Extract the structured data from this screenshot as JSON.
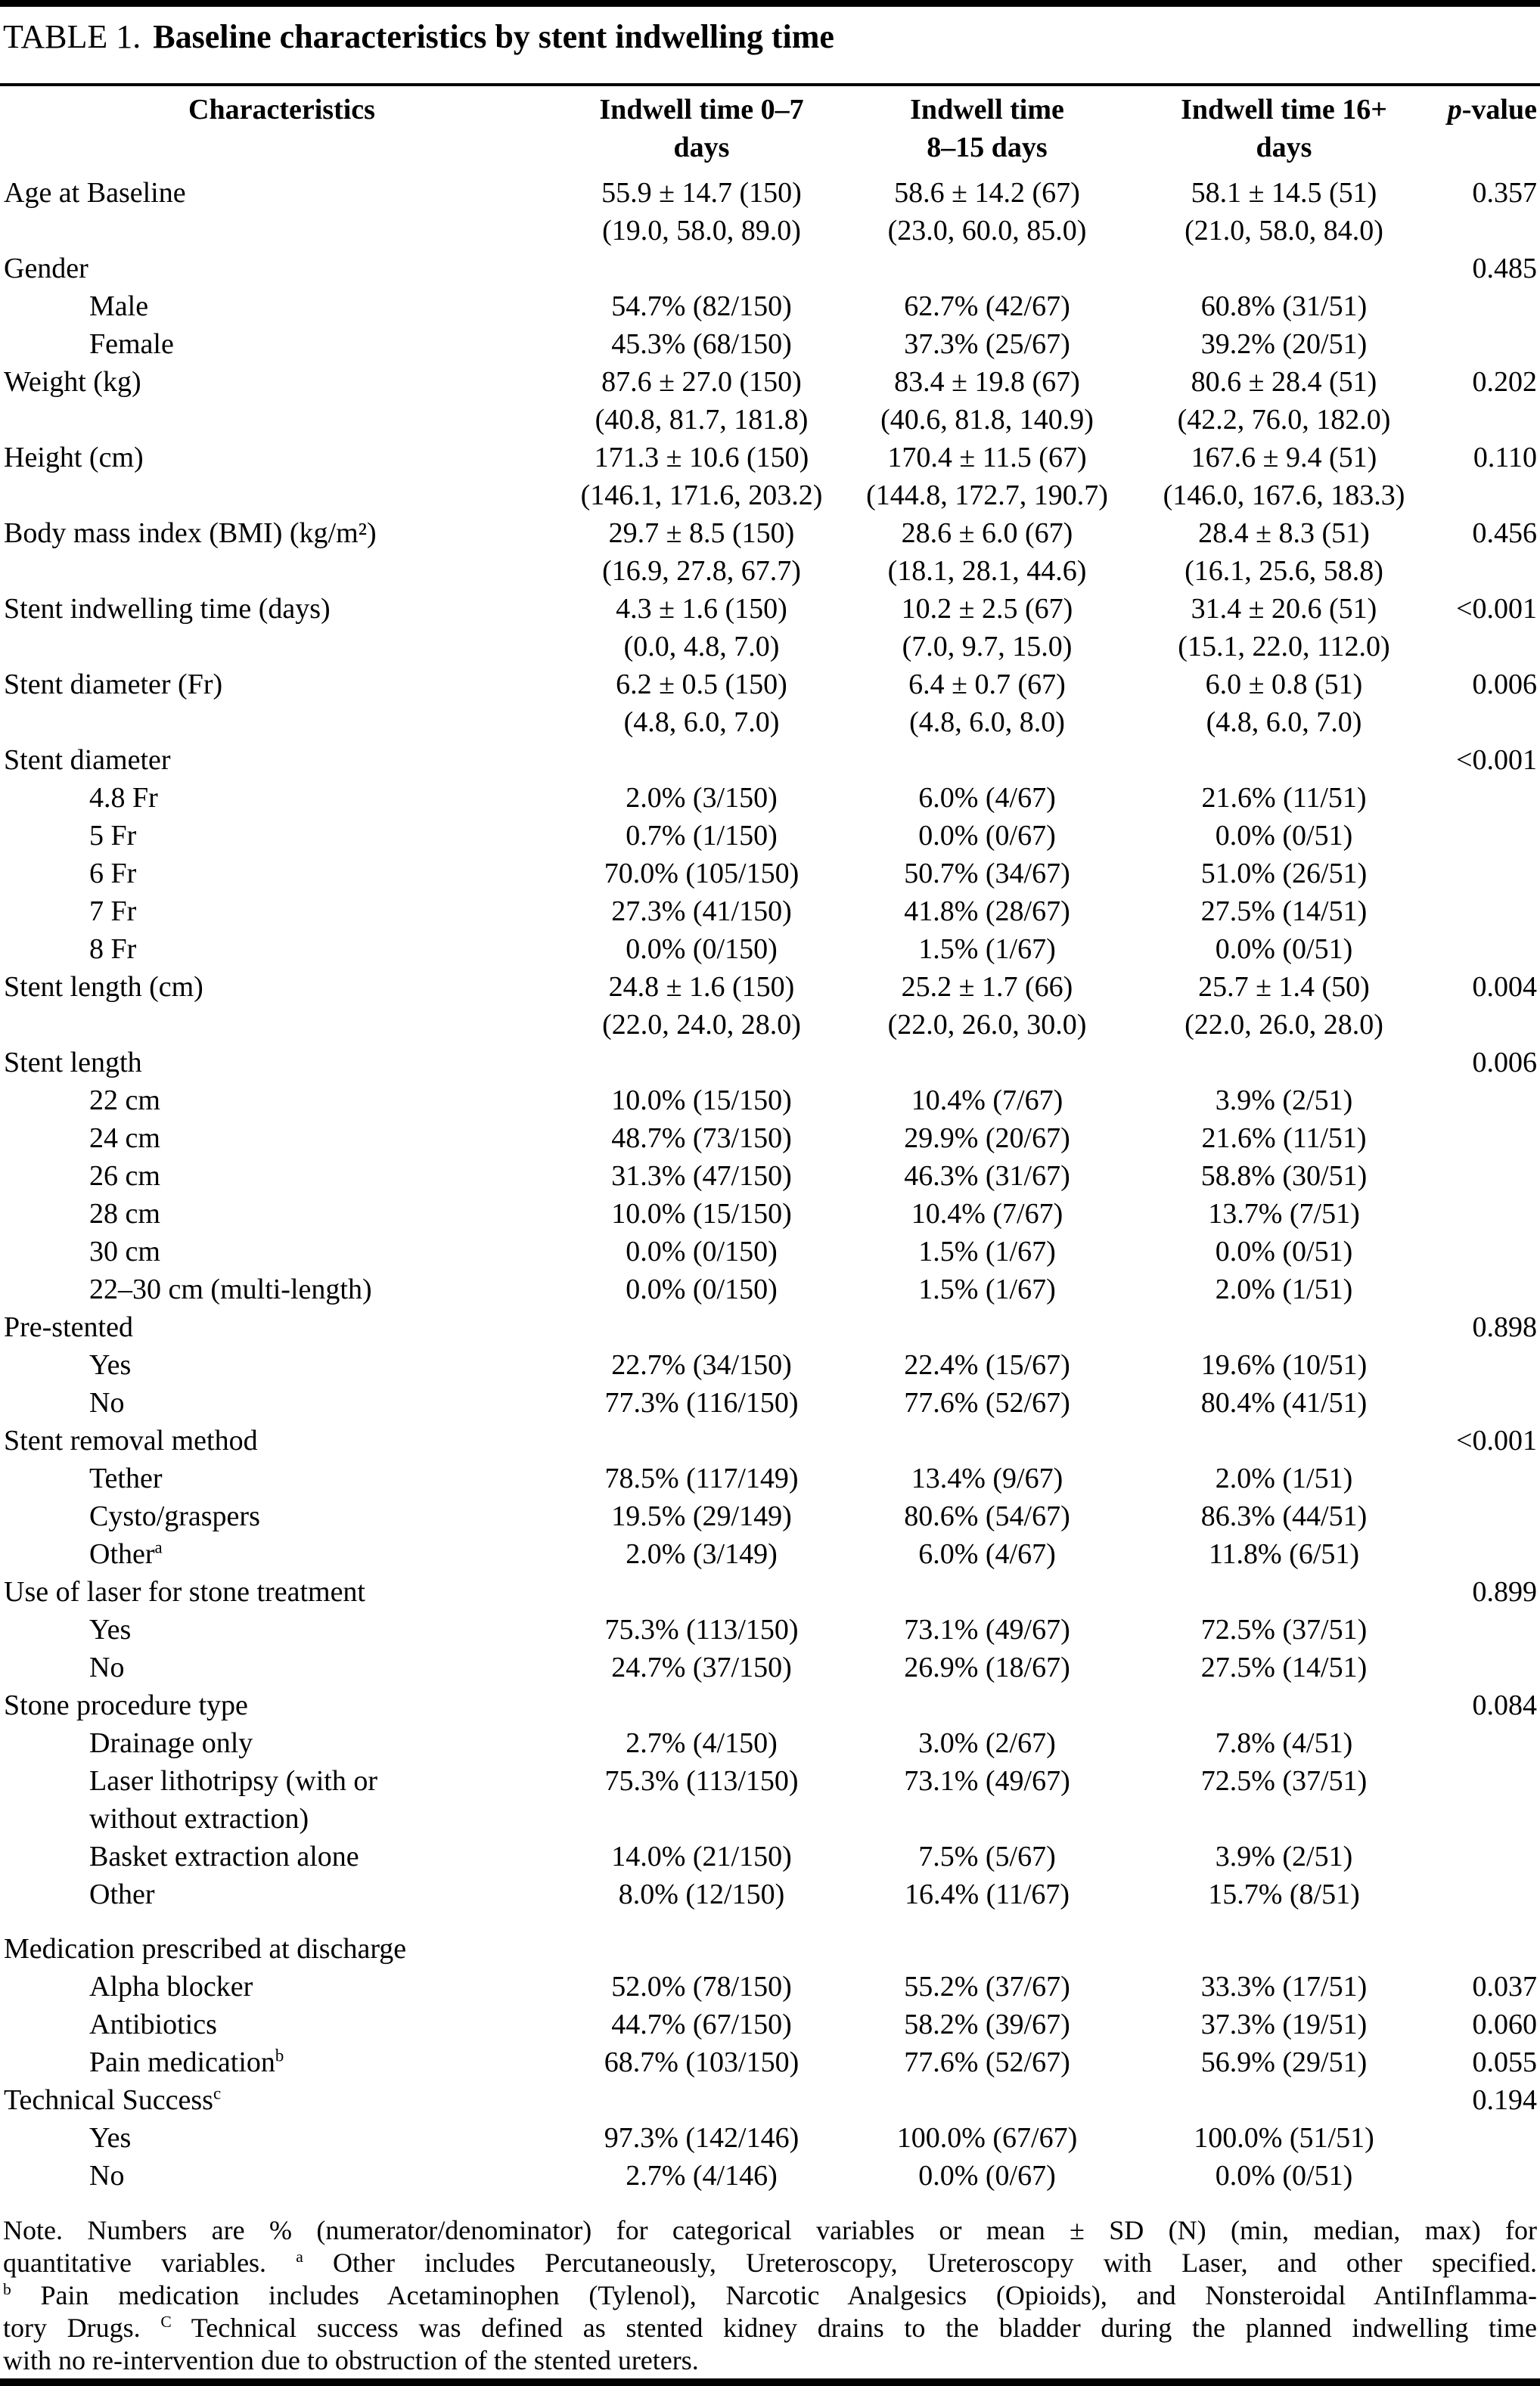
{
  "title": {
    "prefix": "TABLE 1.",
    "text": "Baseline characteristics by stent indwelling time"
  },
  "table": {
    "headers": {
      "characteristics": "Characteristics",
      "col1": "Indwell time 0–7\ndays",
      "col2": "Indwell time\n8–15 days",
      "col3": "Indwell time 16+\ndays",
      "p_italic": "p",
      "p_rest": "-value"
    },
    "rows": [
      {
        "label": "Age at Baseline",
        "indent": 0,
        "v1": "55.9 ± 14.7 (150)\n(19.0, 58.0, 89.0)",
        "v2": "58.6 ± 14.2 (67)\n(23.0, 60.0, 85.0)",
        "v3": "58.1 ± 14.5 (51)\n(21.0, 58.0, 84.0)",
        "p": "0.357"
      },
      {
        "label": "Gender",
        "indent": 0,
        "p": "0.485"
      },
      {
        "label": "Male",
        "indent": 1,
        "v1": "54.7% (82/150)",
        "v2": "62.7% (42/67)",
        "v3": "60.8% (31/51)"
      },
      {
        "label": "Female",
        "indent": 1,
        "v1": "45.3% (68/150)",
        "v2": "37.3% (25/67)",
        "v3": "39.2% (20/51)"
      },
      {
        "label": "Weight (kg)",
        "indent": 0,
        "v1": "87.6 ± 27.0 (150)\n(40.8, 81.7, 181.8)",
        "v2": "83.4 ± 19.8 (67)\n(40.6, 81.8, 140.9)",
        "v3": "80.6 ± 28.4 (51)\n(42.2, 76.0, 182.0)",
        "p": "0.202"
      },
      {
        "label": "Height (cm)",
        "indent": 0,
        "v1": "171.3 ± 10.6 (150)\n(146.1, 171.6, 203.2)",
        "v2": "170.4 ± 11.5 (67)\n(144.8, 172.7, 190.7)",
        "v3": "167.6 ± 9.4 (51)\n(146.0, 167.6, 183.3)",
        "p": "0.110"
      },
      {
        "label": "Body mass index (BMI) (kg/m²)",
        "indent": 0,
        "v1": "29.7 ± 8.5 (150)\n(16.9, 27.8, 67.7)",
        "v2": "28.6 ± 6.0 (67)\n(18.1, 28.1, 44.6)",
        "v3": "28.4 ± 8.3 (51)\n(16.1, 25.6, 58.8)",
        "p": "0.456"
      },
      {
        "label": "Stent indwelling time (days)",
        "indent": 0,
        "v1": "4.3 ± 1.6 (150)\n(0.0, 4.8, 7.0)",
        "v2": "10.2 ± 2.5 (67)\n(7.0, 9.7, 15.0)",
        "v3": "31.4 ± 20.6 (51)\n(15.1, 22.0, 112.0)",
        "p": "<0.001"
      },
      {
        "label": "Stent diameter (Fr)",
        "indent": 0,
        "v1": "6.2 ± 0.5 (150)\n(4.8, 6.0, 7.0)",
        "v2": "6.4 ± 0.7 (67)\n(4.8, 6.0, 8.0)",
        "v3": "6.0 ± 0.8 (51)\n(4.8, 6.0, 7.0)",
        "p": "0.006"
      },
      {
        "label": "Stent diameter",
        "indent": 0,
        "p": "<0.001"
      },
      {
        "label": "4.8 Fr",
        "indent": 1,
        "v1": "2.0% (3/150)",
        "v2": "6.0% (4/67)",
        "v3": "21.6% (11/51)"
      },
      {
        "label": "5 Fr",
        "indent": 1,
        "v1": "0.7% (1/150)",
        "v2": "0.0% (0/67)",
        "v3": "0.0% (0/51)"
      },
      {
        "label": "6 Fr",
        "indent": 1,
        "v1": "70.0% (105/150)",
        "v2": "50.7% (34/67)",
        "v3": "51.0% (26/51)"
      },
      {
        "label": "7 Fr",
        "indent": 1,
        "v1": "27.3% (41/150)",
        "v2": "41.8% (28/67)",
        "v3": "27.5% (14/51)"
      },
      {
        "label": "8 Fr",
        "indent": 1,
        "v1": "0.0% (0/150)",
        "v2": "1.5% (1/67)",
        "v3": "0.0% (0/51)"
      },
      {
        "label": "Stent length (cm)",
        "indent": 0,
        "v1": "24.8 ± 1.6 (150)\n(22.0, 24.0, 28.0)",
        "v2": "25.2 ± 1.7 (66)\n(22.0, 26.0, 30.0)",
        "v3": "25.7 ± 1.4 (50)\n(22.0, 26.0, 28.0)",
        "p": "0.004"
      },
      {
        "label": "Stent length",
        "indent": 0,
        "p": "0.006"
      },
      {
        "label": "22 cm",
        "indent": 1,
        "v1": "10.0% (15/150)",
        "v2": "10.4% (7/67)",
        "v3": "3.9% (2/51)"
      },
      {
        "label": "24 cm",
        "indent": 1,
        "v1": "48.7% (73/150)",
        "v2": "29.9% (20/67)",
        "v3": "21.6% (11/51)"
      },
      {
        "label": "26 cm",
        "indent": 1,
        "v1": "31.3% (47/150)",
        "v2": "46.3% (31/67)",
        "v3": "58.8% (30/51)"
      },
      {
        "label": "28 cm",
        "indent": 1,
        "v1": "10.0% (15/150)",
        "v2": "10.4% (7/67)",
        "v3": "13.7% (7/51)"
      },
      {
        "label": "30 cm",
        "indent": 1,
        "v1": "0.0% (0/150)",
        "v2": "1.5% (1/67)",
        "v3": "0.0% (0/51)"
      },
      {
        "label": "22–30 cm (multi-length)",
        "indent": 1,
        "v1": "0.0% (0/150)",
        "v2": "1.5% (1/67)",
        "v3": "2.0% (1/51)"
      },
      {
        "label": "Pre-stented",
        "indent": 0,
        "p": "0.898"
      },
      {
        "label": "Yes",
        "indent": 1,
        "v1": "22.7% (34/150)",
        "v2": "22.4% (15/67)",
        "v3": "19.6% (10/51)"
      },
      {
        "label": "No",
        "indent": 1,
        "v1": "77.3% (116/150)",
        "v2": "77.6% (52/67)",
        "v3": "80.4% (41/51)"
      },
      {
        "label": "Stent removal method",
        "indent": 0,
        "p": "<0.001"
      },
      {
        "label": "Tether",
        "indent": 1,
        "v1": "78.5% (117/149)",
        "v2": "13.4% (9/67)",
        "v3": "2.0% (1/51)"
      },
      {
        "label": "Cysto/graspers",
        "indent": 1,
        "v1": "19.5% (29/149)",
        "v2": "80.6% (54/67)",
        "v3": "86.3% (44/51)"
      },
      {
        "label": "Other",
        "sup": "a",
        "indent": 1,
        "v1": "2.0% (3/149)",
        "v2": "6.0% (4/67)",
        "v3": "11.8% (6/51)"
      },
      {
        "label": "Use of laser for stone treatment",
        "indent": 0,
        "p": "0.899"
      },
      {
        "label": "Yes",
        "indent": 1,
        "v1": "75.3% (113/150)",
        "v2": "73.1% (49/67)",
        "v3": "72.5% (37/51)"
      },
      {
        "label": "No",
        "indent": 1,
        "v1": "24.7% (37/150)",
        "v2": "26.9% (18/67)",
        "v3": "27.5% (14/51)"
      },
      {
        "label": "Stone procedure type",
        "indent": 0,
        "p": "0.084"
      },
      {
        "label": "Drainage only",
        "indent": 1,
        "v1": "2.7% (4/150)",
        "v2": "3.0% (2/67)",
        "v3": "7.8% (4/51)"
      },
      {
        "label": "Laser lithotripsy (with or\nwithout extraction)",
        "indent": 1,
        "v1": "75.3% (113/150)",
        "v2": "73.1% (49/67)",
        "v3": "72.5% (37/51)"
      },
      {
        "label": "Basket extraction alone",
        "indent": 1,
        "v1": "14.0% (21/150)",
        "v2": "7.5% (5/67)",
        "v3": "3.9% (2/51)"
      },
      {
        "label": "Other",
        "indent": 1,
        "v1": "8.0% (12/150)",
        "v2": "16.4% (11/67)",
        "v3": "15.7% (8/51)"
      },
      {
        "label": "Medication prescribed at discharge",
        "indent": 0,
        "gap": true
      },
      {
        "label": "Alpha blocker",
        "indent": 1,
        "v1": "52.0% (78/150)",
        "v2": "55.2% (37/67)",
        "v3": "33.3% (17/51)",
        "p": "0.037"
      },
      {
        "label": "Antibiotics",
        "indent": 1,
        "v1": "44.7% (67/150)",
        "v2": "58.2% (39/67)",
        "v3": "37.3% (19/51)",
        "p": "0.060"
      },
      {
        "label": "Pain medication",
        "sup": "b",
        "indent": 1,
        "v1": "68.7% (103/150)",
        "v2": "77.6% (52/67)",
        "v3": "56.9% (29/51)",
        "p": "0.055"
      },
      {
        "label": "Technical Success",
        "sup": "c",
        "indent": 0,
        "p": "0.194"
      },
      {
        "label": "Yes",
        "indent": 1,
        "v1": "97.3% (142/146)",
        "v2": "100.0% (67/67)",
        "v3": "100.0% (51/51)"
      },
      {
        "label": "No",
        "indent": 1,
        "v1": "2.7% (4/146)",
        "v2": "0.0% (0/67)",
        "v3": "0.0% (0/51)"
      }
    ]
  },
  "footnote": {
    "lines": [
      [
        {
          "t": "Note. Numbers are % (numerator/denominator) for categorical variables or mean ± SD (N) (min, median, max) for"
        }
      ],
      [
        {
          "t": "quantitative variables. "
        },
        {
          "s": "a"
        },
        {
          "t": " Other includes Percutaneously, Ureteroscopy, Ureteroscopy with Laser, and other specified."
        }
      ],
      [
        {
          "s": "b"
        },
        {
          "t": " Pain medication includes Acetaminophen (Tylenol), Narcotic Analgesics (Opioids), and Nonsteroidal AntiInflamma-"
        }
      ],
      [
        {
          "t": "tory Drugs. "
        },
        {
          "s": "C"
        },
        {
          "t": " Technical success was defined as stented kidney drains to the bladder during the planned indwelling time"
        }
      ],
      [
        {
          "t": "with no re-intervention due to obstruction of the stented ureters."
        }
      ]
    ]
  }
}
